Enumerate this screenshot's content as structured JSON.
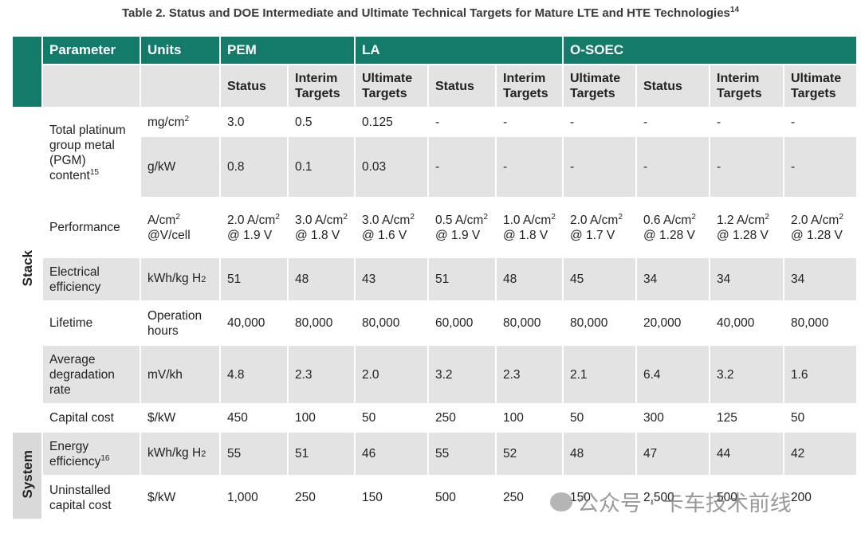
{
  "title": "Table 2. Status and DOE Intermediate and Ultimate Technical Targets for Mature LTE and HTE Technologies",
  "title_sup": "14",
  "header": {
    "parameter": "Parameter",
    "units": "Units",
    "groups": [
      {
        "name": "PEM",
        "columns": [
          "Status",
          "Interim Targets"
        ]
      },
      {
        "name": "LA",
        "columns": [
          "Ultimate Targets",
          "Status",
          "Interim Targets"
        ]
      },
      {
        "name": "O-SOEC",
        "columns": [
          "Ultimate Targets",
          "Status",
          "Interim Targets",
          "Ultimate Targets"
        ]
      }
    ]
  },
  "sections": [
    {
      "label": "Stack",
      "rows": [
        {
          "parameter": [
            "Total platinum group metal (PGM) content",
            {
              "sup": "15"
            }
          ],
          "entries": [
            {
              "units": [
                "mg/cm",
                {
                  "sup": "2"
                }
              ],
              "values": [
                "3.0",
                "0.5",
                "0.125",
                "-",
                "-",
                "-",
                "-",
                "-",
                "-"
              ]
            },
            {
              "units": [
                "g/kW"
              ],
              "values": [
                "0.8",
                "0.1",
                "0.03",
                "-",
                "-",
                "-",
                "-",
                "-",
                "-"
              ]
            }
          ]
        },
        {
          "parameter": [
            "Performance"
          ],
          "entries": [
            {
              "units": [
                "A/cm",
                {
                  "sup": "2"
                },
                " @V/cell"
              ],
              "values": [
                [
                  "2.0 A/cm",
                  {
                    "sup": "2"
                  },
                  " @ 1.9 V"
                ],
                [
                  "3.0 A/cm",
                  {
                    "sup": "2"
                  },
                  " @ 1.8 V"
                ],
                [
                  "3.0 A/cm",
                  {
                    "sup": "2"
                  },
                  " @ 1.6 V"
                ],
                [
                  "0.5 A/cm",
                  {
                    "sup": "2"
                  },
                  " @ 1.9 V"
                ],
                [
                  "1.0 A/cm",
                  {
                    "sup": "2"
                  },
                  " @ 1.8 V"
                ],
                [
                  "2.0 A/cm",
                  {
                    "sup": "2"
                  },
                  " @ 1.7 V"
                ],
                [
                  "0.6 A/cm",
                  {
                    "sup": "2"
                  },
                  " @ 1.28 V"
                ],
                [
                  "1.2 A/cm",
                  {
                    "sup": "2"
                  },
                  " @ 1.28 V"
                ],
                [
                  "2.0 A/cm",
                  {
                    "sup": "2"
                  },
                  " @ 1.28 V"
                ]
              ]
            }
          ]
        },
        {
          "parameter": [
            "Electrical efficiency"
          ],
          "entries": [
            {
              "units": [
                "kWh/kg H",
                {
                  "sub": "2"
                }
              ],
              "values": [
                "51",
                "48",
                "43",
                "51",
                "48",
                "45",
                "34",
                "34",
                "34"
              ]
            }
          ]
        },
        {
          "parameter": [
            "Lifetime"
          ],
          "entries": [
            {
              "units": [
                "Operation hours"
              ],
              "values": [
                "40,000",
                "80,000",
                "80,000",
                "60,000",
                "80,000",
                "80,000",
                "20,000",
                "40,000",
                "80,000"
              ]
            }
          ]
        },
        {
          "parameter": [
            "Average degradation rate"
          ],
          "entries": [
            {
              "units": [
                "mV/kh"
              ],
              "values": [
                "4.8",
                "2.3",
                "2.0",
                "3.2",
                "2.3",
                "2.1",
                "6.4",
                "3.2",
                "1.6"
              ]
            }
          ]
        },
        {
          "parameter": [
            "Capital cost"
          ],
          "entries": [
            {
              "units": [
                "$/kW"
              ],
              "values": [
                "450",
                "100",
                "50",
                "250",
                "100",
                "50",
                "300",
                "125",
                "50"
              ]
            }
          ]
        }
      ]
    },
    {
      "label": "System",
      "rows": [
        {
          "parameter": [
            "Energy efficiency",
            {
              "sup": "16"
            }
          ],
          "entries": [
            {
              "units": [
                "kWh/kg H",
                {
                  "sub": "2"
                }
              ],
              "values": [
                "55",
                "51",
                "46",
                "55",
                "52",
                "48",
                "47",
                "44",
                "42"
              ]
            }
          ]
        },
        {
          "parameter": [
            "Uninstalled capital cost"
          ],
          "entries": [
            {
              "units": [
                "$/kW"
              ],
              "values": [
                "1,000",
                "250",
                "150",
                "500",
                "250",
                "150",
                "2,500",
                "500",
                "200"
              ]
            }
          ]
        }
      ]
    }
  ],
  "watermark": "公众号 · 卡车技术前线"
}
